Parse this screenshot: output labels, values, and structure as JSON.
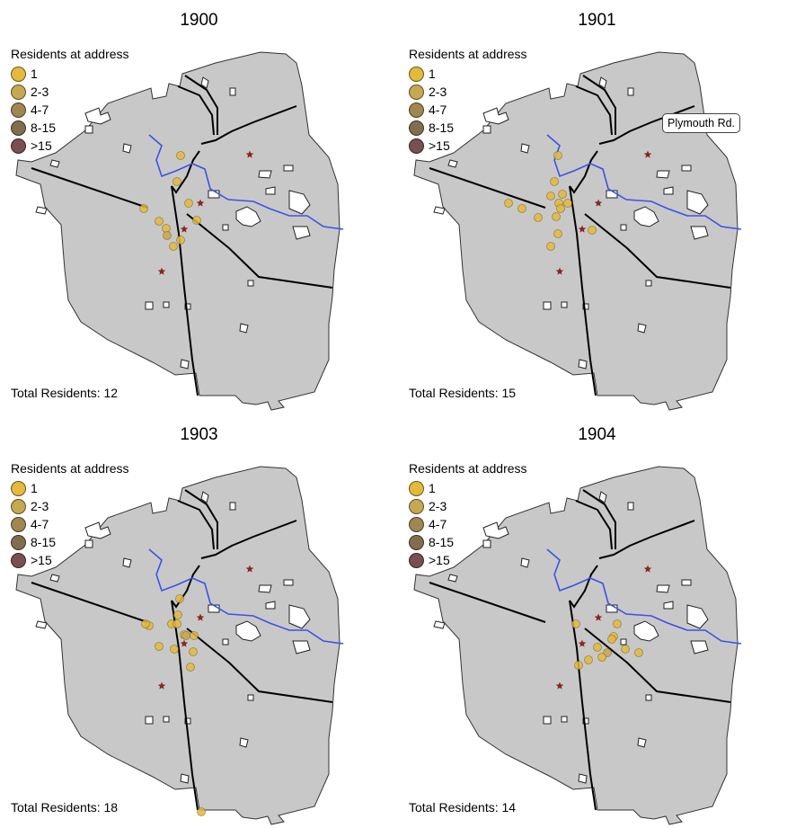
{
  "legend_title": "Residents at address",
  "legend": [
    {
      "label": "1",
      "color": "#e3ba3c"
    },
    {
      "label": "2-3",
      "color": "#c7a852"
    },
    {
      "label": "4-7",
      "color": "#a08650"
    },
    {
      "label": "8-15",
      "color": "#826d4f"
    },
    {
      "label": ">15",
      "color": "#7a4f52"
    }
  ],
  "total_prefix": "Total Residents:",
  "callout": "Plymouth Rd.",
  "colors": {
    "land": "#c8c8c8",
    "river": "#3a52e8",
    "road": "#000000",
    "star": "#8b2323"
  },
  "panels": [
    {
      "year": "1900",
      "total": "12"
    },
    {
      "year": "1901",
      "total": "15"
    },
    {
      "year": "1903",
      "total": "18"
    },
    {
      "year": "1904",
      "total": "14"
    }
  ],
  "icons": [
    "landmark-star-icon"
  ]
}
